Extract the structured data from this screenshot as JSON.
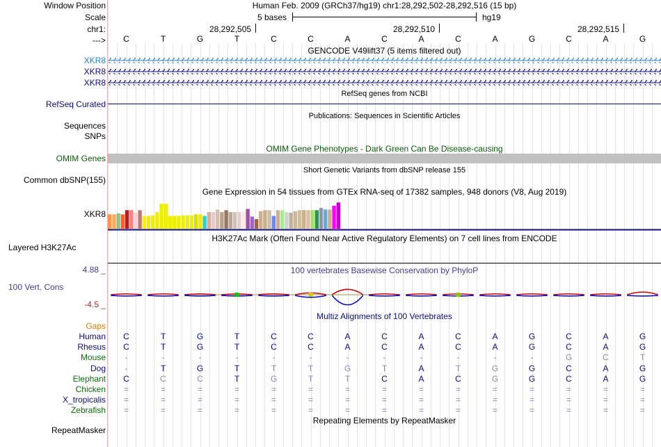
{
  "colors": {
    "gene_blue_light": "#2a7fbf",
    "navy": "#0c0c78",
    "omim_green": "#0b5a0b",
    "gaps_orange": "#d08000",
    "species_green": "#0b6a0b",
    "cons_blue": "#3f3f8f",
    "cons_red": "#a03030",
    "omim_bar": "#c0c0c0",
    "divider_red": "#f4a6a6"
  },
  "labels": {
    "window_position": "Window Position",
    "scale": "Scale",
    "chr": "chr1:",
    "arrow": "--->",
    "xkr8_1": "XKR8",
    "xkr8_2": "XKR8",
    "xkr8_3": "XKR8",
    "refseq": "RefSeq Curated",
    "sequences": "Sequences",
    "snps": "SNPs",
    "omim": "OMIM Genes",
    "dbsnp": "Common dbSNP(155)",
    "gtex_gene": "XKR8",
    "h3k27ac": "Layered H3K27Ac",
    "cons_max": "4.88 _",
    "cons": "100 Vert. Cons",
    "cons_min": "-4.5 _",
    "gaps": "Gaps"
  },
  "header": {
    "position_text": "Human Feb. 2009 (GRCh37/hg19)   chr1:28,292,502-28,292,516 (15 bp)",
    "scale_text": "5 bases",
    "assembly": "hg19",
    "ruler_ticks": [
      "28,292,505",
      "28,292,510",
      "28,292,515"
    ]
  },
  "sequence": [
    "C",
    "T",
    "G",
    "T",
    "C",
    "C",
    "A",
    "C",
    "A",
    "C",
    "A",
    "G",
    "C",
    "A",
    "G"
  ],
  "titles": {
    "gencode": "GENCODE V49lift37 (5 items filtered out)",
    "refseq": "RefSeq genes from NCBI",
    "publications": "Publications: Sequences in Scientific Articles",
    "omim": "OMIM Gene Phenotypes - Dark Green Can Be Disease-causing",
    "dbsnp": "Short Genetic Variants from dbSNP release 155",
    "gtex": "Gene Expression in 54 tissues from GTEx RNA-seq of 17382 samples, 948 donors (V8, Aug 2019)",
    "h3k27ac": "H3K27Ac Mark (Often Found Near Active Regulatory Elements) on 7 cell lines from ENCODE",
    "phylop": "100 vertebrates Basewise Conservation by PhyloP",
    "multiz": "Multiz Alignments of 100 Vertebrates",
    "repeatmasker": "Repeating Elements by RepeatMasker"
  },
  "gtex": {
    "bar_levels": [
      0.45,
      0.45,
      0.48,
      0.45,
      0.58,
      0.58,
      0.5,
      0.58,
      0.4,
      0.4,
      0.42,
      0.52,
      0.78,
      0.78,
      0.4,
      0.4,
      0.4,
      0.42,
      0.42,
      0.42,
      0.45,
      0.45,
      0.4,
      0.52,
      0.52,
      0.6,
      0.52,
      0.58,
      0.52,
      0.52,
      0.52,
      0.55,
      0.62,
      0.38,
      0.3,
      0.55,
      0.58,
      0.58,
      0.4,
      0.58,
      0.58,
      0.52,
      0.5,
      0.55,
      0.58,
      0.58,
      0.58,
      0.58,
      0.58,
      0.65,
      0.6,
      0.6,
      0.72,
      0.82
    ],
    "bar_colors": [
      "#ff9a3c",
      "#ffaa55",
      "#8fc28f",
      "#ff6030",
      "#b02020",
      "#ff8080",
      "#ffd0d0",
      "#c07878",
      "#ffee00",
      "#eeee00",
      "#eeee00",
      "#eeee00",
      "#eeee00",
      "#eeee00",
      "#eeee00",
      "#eeee00",
      "#eeee00",
      "#eeee00",
      "#eeee00",
      "#eeee00",
      "#e0e000",
      "#eeee00",
      "#33cccc",
      "#d0b0a0",
      "#e8c8c8",
      "#d0c0b0",
      "#b8a088",
      "#997766",
      "#c0a890",
      "#d0c0b0",
      "#e8d0d0",
      "#ffe8e8",
      "#a050a0",
      "#9966cc",
      "#996644",
      "#c8b090",
      "#c8b090",
      "#d0c0a0",
      "#6688ff",
      "#c8b090",
      "#aaee88",
      "#c8d8d8",
      "#c8b090",
      "#c8b8a0",
      "#d0c0a0",
      "#c8b090",
      "#d8c0a8",
      "#aadd66",
      "#229944",
      "#8899aa",
      "#66aadd",
      "#c8b090",
      "#ff00ff",
      "#cc00cc"
    ]
  },
  "phylop": {
    "values": [
      0.05,
      0.05,
      0.05,
      0.05,
      0.05,
      0.1,
      0.3,
      0.05,
      0.05,
      0.05,
      0.05,
      0.05,
      0.05,
      0.05,
      0.15
    ],
    "neg_values": [
      0.05,
      0.05,
      0.05,
      0.05,
      0.05,
      0.15,
      0.75,
      0.05,
      0.05,
      0.05,
      0.05,
      0.05,
      0.05,
      0.05,
      0.05
    ],
    "color_pos": "#cc0000",
    "color_neg": "#0000cc"
  },
  "multiz": {
    "species": [
      {
        "name": "Human",
        "color": "#0c0c78",
        "bases": [
          "C",
          "T",
          "G",
          "T",
          "C",
          "C",
          "A",
          "C",
          "A",
          "C",
          "A",
          "G",
          "C",
          "A",
          "G"
        ],
        "faded": []
      },
      {
        "name": "Rhesus",
        "color": "#0c0c78",
        "bases": [
          "C",
          "T",
          "G",
          "T",
          "C",
          "C",
          "A",
          "C",
          "A",
          "C",
          "A",
          "G",
          "C",
          "A",
          "G"
        ],
        "faded": []
      },
      {
        "name": "Mouse",
        "color": "#0b6a0b",
        "bases": [
          "-",
          "-",
          "-",
          "-",
          "-",
          "-",
          "-",
          "-",
          "-",
          "-",
          "-",
          "-",
          "G",
          "C",
          "T"
        ],
        "faded": [
          12,
          13,
          14
        ]
      },
      {
        "name": "Dog",
        "color": "#0c0c78",
        "bases": [
          "-",
          "T",
          "G",
          "T",
          "T",
          "T",
          "G",
          "T",
          "A",
          "T",
          "G",
          "G",
          "C",
          "A",
          "G"
        ],
        "faded": [
          4,
          5,
          6,
          7,
          9,
          10
        ]
      },
      {
        "name": "Elephant",
        "color": "#0b6a0b",
        "bases": [
          "C",
          "C",
          "C",
          "T",
          "G",
          "T",
          "T",
          "C",
          "A",
          "C",
          "G",
          "G",
          "C",
          "A",
          "G"
        ],
        "faded": [
          1,
          2,
          4,
          5,
          6,
          10
        ]
      },
      {
        "name": "Chicken",
        "color": "#0b6a0b",
        "bases": [
          "=",
          "=",
          "=",
          "=",
          "=",
          "=",
          "=",
          "=",
          "=",
          "=",
          "=",
          "=",
          "=",
          "=",
          "="
        ],
        "faded": []
      },
      {
        "name": "X_tropicalis",
        "color": "#0c0c78",
        "bases": [
          "=",
          "=",
          "=",
          "=",
          "=",
          "=",
          "=",
          "=",
          "=",
          "=",
          "=",
          "=",
          "=",
          "=",
          "="
        ],
        "faded": []
      },
      {
        "name": "Zebrafish",
        "color": "#0b6a0b",
        "bases": [
          "=",
          "=",
          "=",
          "=",
          "=",
          "=",
          "=",
          "=",
          "=",
          "=",
          "=",
          "=",
          "=",
          "=",
          "="
        ],
        "faded": []
      }
    ]
  },
  "repeatmasker_label": "RepeatMasker"
}
